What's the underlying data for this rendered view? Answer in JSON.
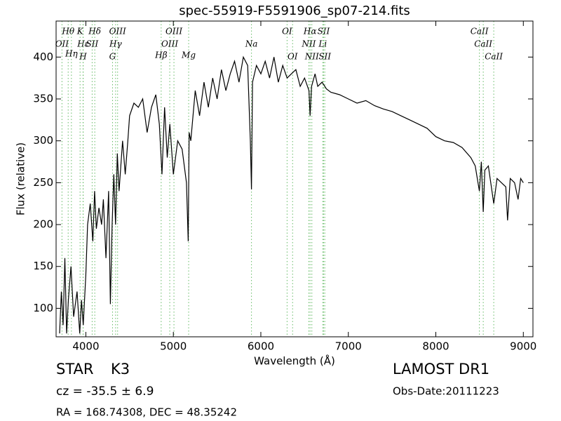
{
  "chart_data": {
    "type": "line",
    "title": "spec-55919-F5591906_sp07-214.fits",
    "xlabel": "Wavelength (Å)",
    "ylabel": "Flux (relative)",
    "xlim": [
      3660,
      9110
    ],
    "ylim": [
      66,
      443
    ],
    "xticks": [
      4000,
      5000,
      6000,
      7000,
      8000,
      9000
    ],
    "yticks": [
      100,
      150,
      200,
      250,
      300,
      350,
      400
    ],
    "grid": false,
    "series": [
      {
        "name": "Flux",
        "color": "#000000",
        "x": [
          3700,
          3720,
          3740,
          3760,
          3780,
          3800,
          3830,
          3860,
          3900,
          3930,
          3950,
          3970,
          4000,
          4020,
          4050,
          4080,
          4100,
          4120,
          4150,
          4180,
          4200,
          4230,
          4260,
          4280,
          4300,
          4320,
          4340,
          4360,
          4380,
          4400,
          4420,
          4450,
          4480,
          4500,
          4550,
          4600,
          4650,
          4700,
          4750,
          4800,
          4840,
          4870,
          4900,
          4930,
          4960,
          5000,
          5050,
          5100,
          5150,
          5170,
          5180,
          5200,
          5250,
          5300,
          5350,
          5400,
          5450,
          5500,
          5550,
          5600,
          5650,
          5700,
          5750,
          5800,
          5850,
          5880,
          5893,
          5905,
          5950,
          6000,
          6050,
          6100,
          6150,
          6200,
          6250,
          6300,
          6350,
          6400,
          6450,
          6500,
          6550,
          6563,
          6580,
          6620,
          6650,
          6700,
          6750,
          6800,
          6900,
          7000,
          7100,
          7200,
          7300,
          7400,
          7500,
          7600,
          7700,
          7800,
          7900,
          8000,
          8100,
          8200,
          8300,
          8400,
          8450,
          8498,
          8520,
          8542,
          8560,
          8600,
          8662,
          8700,
          8750,
          8800,
          8820,
          8850,
          8900,
          8940,
          8970,
          9000
        ],
        "values": [
          70,
          120,
          80,
          160,
          70,
          110,
          150,
          90,
          120,
          70,
          110,
          80,
          140,
          200,
          225,
          180,
          240,
          195,
          220,
          200,
          230,
          160,
          240,
          105,
          200,
          260,
          200,
          285,
          240,
          270,
          300,
          260,
          300,
          330,
          345,
          340,
          350,
          310,
          340,
          355,
          320,
          260,
          340,
          280,
          320,
          260,
          300,
          290,
          250,
          180,
          310,
          300,
          360,
          330,
          370,
          340,
          375,
          350,
          385,
          360,
          380,
          395,
          370,
          400,
          390,
          300,
          242,
          370,
          390,
          380,
          395,
          375,
          400,
          370,
          390,
          375,
          380,
          385,
          365,
          375,
          360,
          330,
          365,
          380,
          365,
          370,
          362,
          358,
          355,
          350,
          345,
          348,
          342,
          338,
          335,
          330,
          325,
          320,
          315,
          305,
          300,
          298,
          292,
          280,
          270,
          240,
          275,
          215,
          265,
          270,
          225,
          255,
          250,
          245,
          205,
          255,
          250,
          230,
          255,
          250
        ]
      }
    ],
    "line_color": "#66bb66",
    "features": [
      {
        "label": "OII",
        "x": 3727
      },
      {
        "label": "Hθ",
        "x": 3798
      },
      {
        "label": "Hη",
        "x": 3835
      },
      {
        "label": "K",
        "x": 3934
      },
      {
        "label": "Hε",
        "x": 3970
      },
      {
        "label": "H",
        "x": 3968
      },
      {
        "label": "SII",
        "x": 4072
      },
      {
        "label": "Hδ",
        "x": 4102
      },
      {
        "label": "G",
        "x": 4305
      },
      {
        "label": "Hγ",
        "x": 4340
      },
      {
        "label": "OIII",
        "x": 4363
      },
      {
        "label": "Hβ",
        "x": 4861
      },
      {
        "label": "OIII",
        "x": 4959
      },
      {
        "label": "OIII",
        "x": 5007
      },
      {
        "label": "Mg",
        "x": 5175
      },
      {
        "label": "Na",
        "x": 5893
      },
      {
        "label": "OI",
        "x": 6300
      },
      {
        "label": "OI",
        "x": 6363
      },
      {
        "label": "NII",
        "x": 6548
      },
      {
        "label": "Hα",
        "x": 6563
      },
      {
        "label": "NII",
        "x": 6583
      },
      {
        "label": "Li",
        "x": 6708
      },
      {
        "label": "SII",
        "x": 6717
      },
      {
        "label": "SII",
        "x": 6731
      },
      {
        "label": "CaII",
        "x": 8498
      },
      {
        "label": "CaII",
        "x": 8542
      },
      {
        "label": "CaII",
        "x": 8662
      }
    ],
    "object_class": "STAR",
    "subclass": "K3",
    "redshift": "cz = -35.5 ± 6.9",
    "coords": "RA = 168.74308, DEC = 48.35242",
    "survey": "LAMOST DR1",
    "obs_date": "Obs-Date:20111223"
  }
}
